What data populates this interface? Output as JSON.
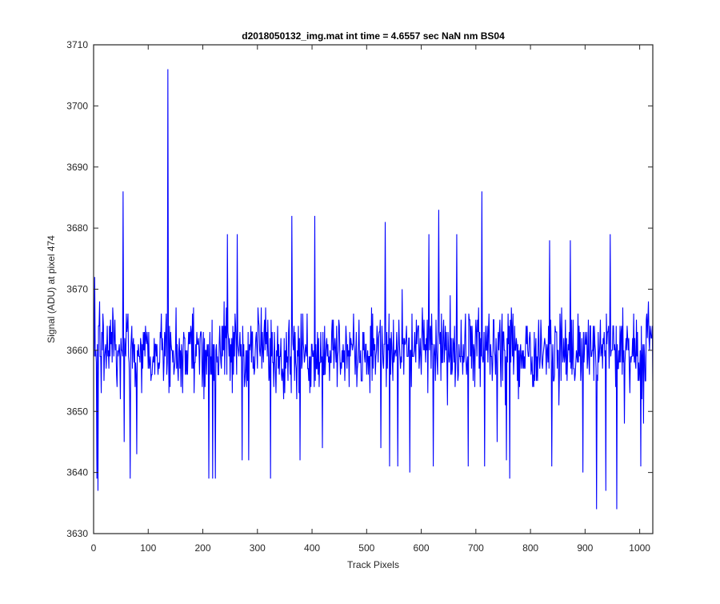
{
  "chart_data": {
    "type": "line",
    "title": "d2018050132_img.mat int time = 4.6557 sec  NaN nm BS04",
    "xlabel": "Track Pixels",
    "ylabel": "Signal (ADU) at pixel 474",
    "xlim": [
      0,
      1024
    ],
    "ylim": [
      3630,
      3710
    ],
    "xticks": [
      0,
      100,
      200,
      300,
      400,
      500,
      600,
      700,
      800,
      900,
      1000
    ],
    "yticks": [
      3630,
      3640,
      3650,
      3660,
      3670,
      3680,
      3690,
      3700,
      3710
    ],
    "grid": false,
    "box": true,
    "series": [
      {
        "color": "#0000ff",
        "n_points": 1024,
        "baseline": 3660,
        "noise_amplitude": 6,
        "spikes": [
          {
            "x": 1,
            "y": 3672
          },
          {
            "x": 5,
            "y": 3639
          },
          {
            "x": 7,
            "y": 3637
          },
          {
            "x": 55,
            "y": 3645
          },
          {
            "x": 53,
            "y": 3686
          },
          {
            "x": 66,
            "y": 3639
          },
          {
            "x": 78,
            "y": 3643
          },
          {
            "x": 135,
            "y": 3706
          },
          {
            "x": 210,
            "y": 3639
          },
          {
            "x": 217,
            "y": 3639
          },
          {
            "x": 222,
            "y": 3639
          },
          {
            "x": 244,
            "y": 3679
          },
          {
            "x": 262,
            "y": 3679
          },
          {
            "x": 271,
            "y": 3642
          },
          {
            "x": 283,
            "y": 3642
          },
          {
            "x": 323,
            "y": 3639
          },
          {
            "x": 362,
            "y": 3682
          },
          {
            "x": 377,
            "y": 3642
          },
          {
            "x": 404,
            "y": 3682
          },
          {
            "x": 418,
            "y": 3644
          },
          {
            "x": 525,
            "y": 3644
          },
          {
            "x": 533,
            "y": 3681
          },
          {
            "x": 541,
            "y": 3641
          },
          {
            "x": 556,
            "y": 3641
          },
          {
            "x": 578,
            "y": 3640
          },
          {
            "x": 613,
            "y": 3679
          },
          {
            "x": 621,
            "y": 3641
          },
          {
            "x": 631,
            "y": 3683
          },
          {
            "x": 664,
            "y": 3679
          },
          {
            "x": 685,
            "y": 3641
          },
          {
            "x": 710,
            "y": 3686
          },
          {
            "x": 715,
            "y": 3641
          },
          {
            "x": 738,
            "y": 3645
          },
          {
            "x": 755,
            "y": 3642
          },
          {
            "x": 761,
            "y": 3639
          },
          {
            "x": 834,
            "y": 3678
          },
          {
            "x": 838,
            "y": 3641
          },
          {
            "x": 872,
            "y": 3678
          },
          {
            "x": 895,
            "y": 3640
          },
          {
            "x": 920,
            "y": 3634
          },
          {
            "x": 937,
            "y": 3637
          },
          {
            "x": 945,
            "y": 3679
          },
          {
            "x": 957,
            "y": 3634
          },
          {
            "x": 971,
            "y": 3648
          },
          {
            "x": 1001,
            "y": 3641
          },
          {
            "x": 1006,
            "y": 3648
          },
          {
            "x": 1015,
            "y": 3668
          }
        ]
      }
    ]
  }
}
